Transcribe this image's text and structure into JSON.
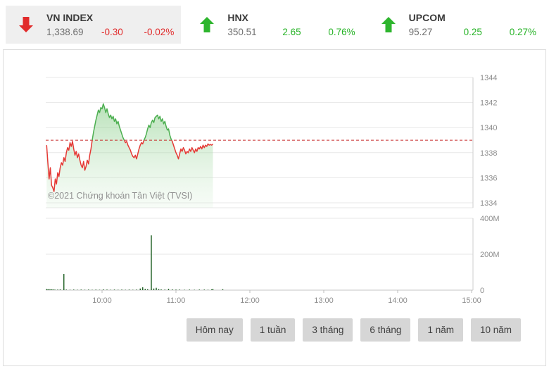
{
  "header": {
    "indices": [
      {
        "name": "VN INDEX",
        "value": "1,338.69",
        "change": "-0.30",
        "pct": "-0.02%",
        "direction": "down",
        "active": true
      },
      {
        "name": "HNX",
        "value": "350.51",
        "change": "2.65",
        "pct": "0.76%",
        "direction": "up",
        "active": false
      },
      {
        "name": "UPCOM",
        "value": "95.27",
        "change": "0.25",
        "pct": "0.27%",
        "direction": "up",
        "active": false
      }
    ]
  },
  "watermark": "©2021 Chứng khoán Tân Việt (TVSI)",
  "range_buttons": [
    "Hôm nay",
    "1 tuần",
    "3 tháng",
    "6 tháng",
    "1 năm",
    "10 năm"
  ],
  "colors": {
    "up": "#2db52d",
    "down": "#e12b2b",
    "line_red": "#e53935",
    "line_green": "#4caf50",
    "volume_bar": "#1b5e20",
    "ref_line": "#c62828",
    "grid": "#e7e7e7",
    "axis": "#c4c4c4"
  },
  "chart_data": {
    "type": "line",
    "title": "VN INDEX intraday price and volume",
    "session_start": "09:15",
    "previous_close": 1338.99,
    "price_ticks": [
      1344,
      1342,
      1340,
      1338,
      1336,
      1334
    ],
    "price_range": [
      1334,
      1344
    ],
    "volume_ticks": [
      {
        "label": "400M",
        "m": 400
      },
      {
        "label": "200M",
        "m": 200
      },
      {
        "label": "0",
        "m": 0
      }
    ],
    "x_hours": [
      {
        "label": "10:00",
        "t": 45
      },
      {
        "label": "11:00",
        "t": 105
      },
      {
        "label": "12:00",
        "t": 165
      },
      {
        "label": "13:00",
        "t": 225
      },
      {
        "label": "14:00",
        "t": 285
      },
      {
        "label": "15:00",
        "t": 345
      }
    ],
    "price_series": [
      [
        0,
        1338.6
      ],
      [
        1,
        1337.2
      ],
      [
        2,
        1335.9
      ],
      [
        3,
        1336.8
      ],
      [
        4,
        1335.4
      ],
      [
        5,
        1335.2
      ],
      [
        6,
        1334.9
      ],
      [
        7,
        1335.9
      ],
      [
        8,
        1335.5
      ],
      [
        9,
        1336.4
      ],
      [
        10,
        1336.1
      ],
      [
        11,
        1336.8
      ],
      [
        12,
        1337.2
      ],
      [
        13,
        1337.0
      ],
      [
        14,
        1337.6
      ],
      [
        15,
        1337.3
      ],
      [
        16,
        1338.0
      ],
      [
        17,
        1338.4
      ],
      [
        18,
        1338.2
      ],
      [
        19,
        1338.8
      ],
      [
        20,
        1338.5
      ],
      [
        21,
        1338.9
      ],
      [
        22,
        1338.3
      ],
      [
        23,
        1337.8
      ],
      [
        24,
        1338.1
      ],
      [
        25,
        1337.6
      ],
      [
        26,
        1337.9
      ],
      [
        27,
        1337.4
      ],
      [
        28,
        1337.0
      ],
      [
        29,
        1336.8
      ],
      [
        30,
        1337.3
      ],
      [
        31,
        1336.6
      ],
      [
        32,
        1336.9
      ],
      [
        33,
        1337.4
      ],
      [
        34,
        1337.1
      ],
      [
        35,
        1337.8
      ],
      [
        36,
        1338.3
      ],
      [
        37,
        1339.0
      ],
      [
        38,
        1339.6
      ],
      [
        39,
        1340.1
      ],
      [
        40,
        1340.6
      ],
      [
        41,
        1341.0
      ],
      [
        42,
        1341.4
      ],
      [
        43,
        1341.2
      ],
      [
        44,
        1341.6
      ],
      [
        45,
        1341.5
      ],
      [
        46,
        1341.9
      ],
      [
        47,
        1341.6
      ],
      [
        48,
        1341.2
      ],
      [
        49,
        1341.5
      ],
      [
        50,
        1341.1
      ],
      [
        51,
        1340.8
      ],
      [
        52,
        1341.0
      ],
      [
        53,
        1340.7
      ],
      [
        54,
        1340.9
      ],
      [
        55,
        1340.5
      ],
      [
        56,
        1340.7
      ],
      [
        57,
        1340.3
      ],
      [
        58,
        1340.5
      ],
      [
        59,
        1340.1
      ],
      [
        60,
        1339.8
      ],
      [
        61,
        1339.5
      ],
      [
        62,
        1339.2
      ],
      [
        63,
        1339.0
      ],
      [
        64,
        1338.8
      ],
      [
        65,
        1338.9
      ],
      [
        66,
        1338.6
      ],
      [
        67,
        1338.4
      ],
      [
        68,
        1338.2
      ],
      [
        69,
        1337.9
      ],
      [
        70,
        1337.7
      ],
      [
        71,
        1337.6
      ],
      [
        72,
        1337.8
      ],
      [
        73,
        1337.5
      ],
      [
        74,
        1337.9
      ],
      [
        75,
        1338.3
      ],
      [
        76,
        1338.6
      ],
      [
        77,
        1338.8
      ],
      [
        78,
        1338.7
      ],
      [
        79,
        1339.0
      ],
      [
        80,
        1339.2
      ],
      [
        81,
        1339.5
      ],
      [
        82,
        1339.9
      ],
      [
        83,
        1340.2
      ],
      [
        84,
        1340.0
      ],
      [
        85,
        1340.4
      ],
      [
        86,
        1340.6
      ],
      [
        87,
        1340.4
      ],
      [
        88,
        1340.8
      ],
      [
        89,
        1340.9
      ],
      [
        90,
        1341.0
      ],
      [
        91,
        1340.7
      ],
      [
        92,
        1340.9
      ],
      [
        93,
        1340.5
      ],
      [
        94,
        1340.7
      ],
      [
        95,
        1340.3
      ],
      [
        96,
        1340.5
      ],
      [
        97,
        1340.1
      ],
      [
        98,
        1339.8
      ],
      [
        99,
        1339.9
      ],
      [
        100,
        1339.4
      ],
      [
        101,
        1339.1
      ],
      [
        102,
        1338.9
      ],
      [
        103,
        1338.6
      ],
      [
        104,
        1338.3
      ],
      [
        105,
        1338.0
      ],
      [
        106,
        1337.8
      ],
      [
        107,
        1337.5
      ],
      [
        108,
        1337.9
      ],
      [
        109,
        1338.3
      ],
      [
        110,
        1338.1
      ],
      [
        111,
        1338.4
      ],
      [
        112,
        1338.2
      ],
      [
        113,
        1337.9
      ],
      [
        114,
        1338.1
      ],
      [
        115,
        1338.0
      ],
      [
        116,
        1338.3
      ],
      [
        117,
        1338.1
      ],
      [
        118,
        1338.4
      ],
      [
        119,
        1338.2
      ],
      [
        120,
        1338.0
      ],
      [
        121,
        1338.3
      ],
      [
        122,
        1338.1
      ],
      [
        123,
        1338.4
      ],
      [
        124,
        1338.3
      ],
      [
        125,
        1338.5
      ],
      [
        126,
        1338.3
      ],
      [
        127,
        1338.6
      ],
      [
        128,
        1338.4
      ],
      [
        129,
        1338.6
      ],
      [
        130,
        1338.5
      ],
      [
        131,
        1338.7
      ],
      [
        132,
        1338.6
      ],
      [
        133,
        1338.65
      ],
      [
        134,
        1338.6
      ],
      [
        135,
        1338.69
      ]
    ],
    "volume_series_millions": [
      [
        0,
        6
      ],
      [
        1,
        4
      ],
      [
        2,
        5
      ],
      [
        3,
        3
      ],
      [
        4,
        4
      ],
      [
        5,
        3
      ],
      [
        6,
        3
      ],
      [
        7,
        2
      ],
      [
        9,
        3
      ],
      [
        11,
        4
      ],
      [
        14,
        90
      ],
      [
        16,
        3
      ],
      [
        19,
        2
      ],
      [
        22,
        3
      ],
      [
        25,
        2
      ],
      [
        28,
        3
      ],
      [
        31,
        2
      ],
      [
        34,
        3
      ],
      [
        37,
        2
      ],
      [
        40,
        3
      ],
      [
        43,
        2
      ],
      [
        46,
        4
      ],
      [
        49,
        3
      ],
      [
        52,
        2
      ],
      [
        55,
        3
      ],
      [
        58,
        2
      ],
      [
        61,
        3
      ],
      [
        64,
        2
      ],
      [
        67,
        3
      ],
      [
        70,
        2
      ],
      [
        73,
        3
      ],
      [
        76,
        9
      ],
      [
        78,
        16
      ],
      [
        80,
        7
      ],
      [
        82,
        5
      ],
      [
        85,
        305
      ],
      [
        87,
        9
      ],
      [
        89,
        13
      ],
      [
        91,
        6
      ],
      [
        93,
        4
      ],
      [
        96,
        3
      ],
      [
        99,
        7
      ],
      [
        102,
        4
      ],
      [
        105,
        3
      ],
      [
        108,
        3
      ],
      [
        112,
        2
      ],
      [
        116,
        3
      ],
      [
        120,
        2
      ],
      [
        124,
        3
      ],
      [
        128,
        3
      ],
      [
        131,
        2
      ],
      [
        134,
        4
      ],
      [
        135,
        6
      ],
      [
        143,
        5
      ]
    ]
  }
}
